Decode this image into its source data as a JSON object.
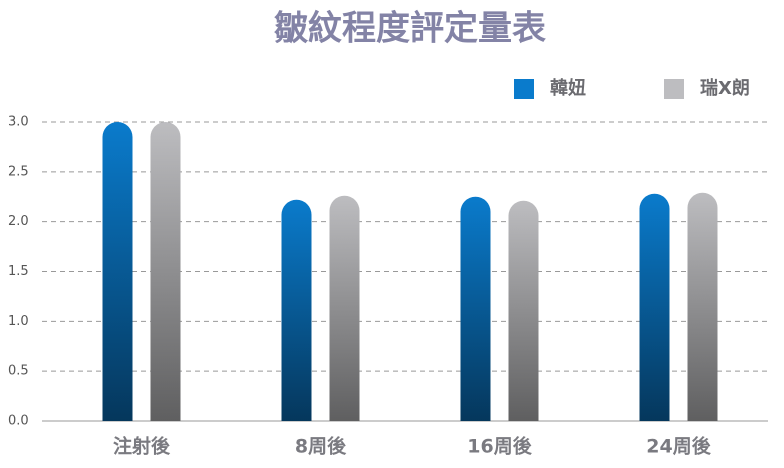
{
  "chart_data": {
    "type": "bar",
    "title": "皺紋程度評定量表",
    "categories": [
      "注射後",
      "8周後",
      "16周後",
      "24周後"
    ],
    "series": [
      {
        "name": "韓妞",
        "color": "#0a7bcc",
        "values": [
          3.0,
          2.22,
          2.25,
          2.28
        ]
      },
      {
        "name": "瑞X朗",
        "color": "#bdbdc0",
        "values": [
          3.0,
          2.26,
          2.21,
          2.29
        ]
      }
    ],
    "ylim": [
      0,
      3
    ],
    "yticks": [
      {
        "value": 0,
        "label": "0.0"
      },
      {
        "value": 0.5,
        "label": "0.5"
      },
      {
        "value": 1,
        "label": "1.0"
      },
      {
        "value": 1.5,
        "label": "1.5"
      },
      {
        "value": 2,
        "label": "2.0"
      },
      {
        "value": 2.5,
        "label": "2.5"
      },
      {
        "value": 3,
        "label": "3.0"
      }
    ],
    "grid": true,
    "legend": "top-right"
  }
}
